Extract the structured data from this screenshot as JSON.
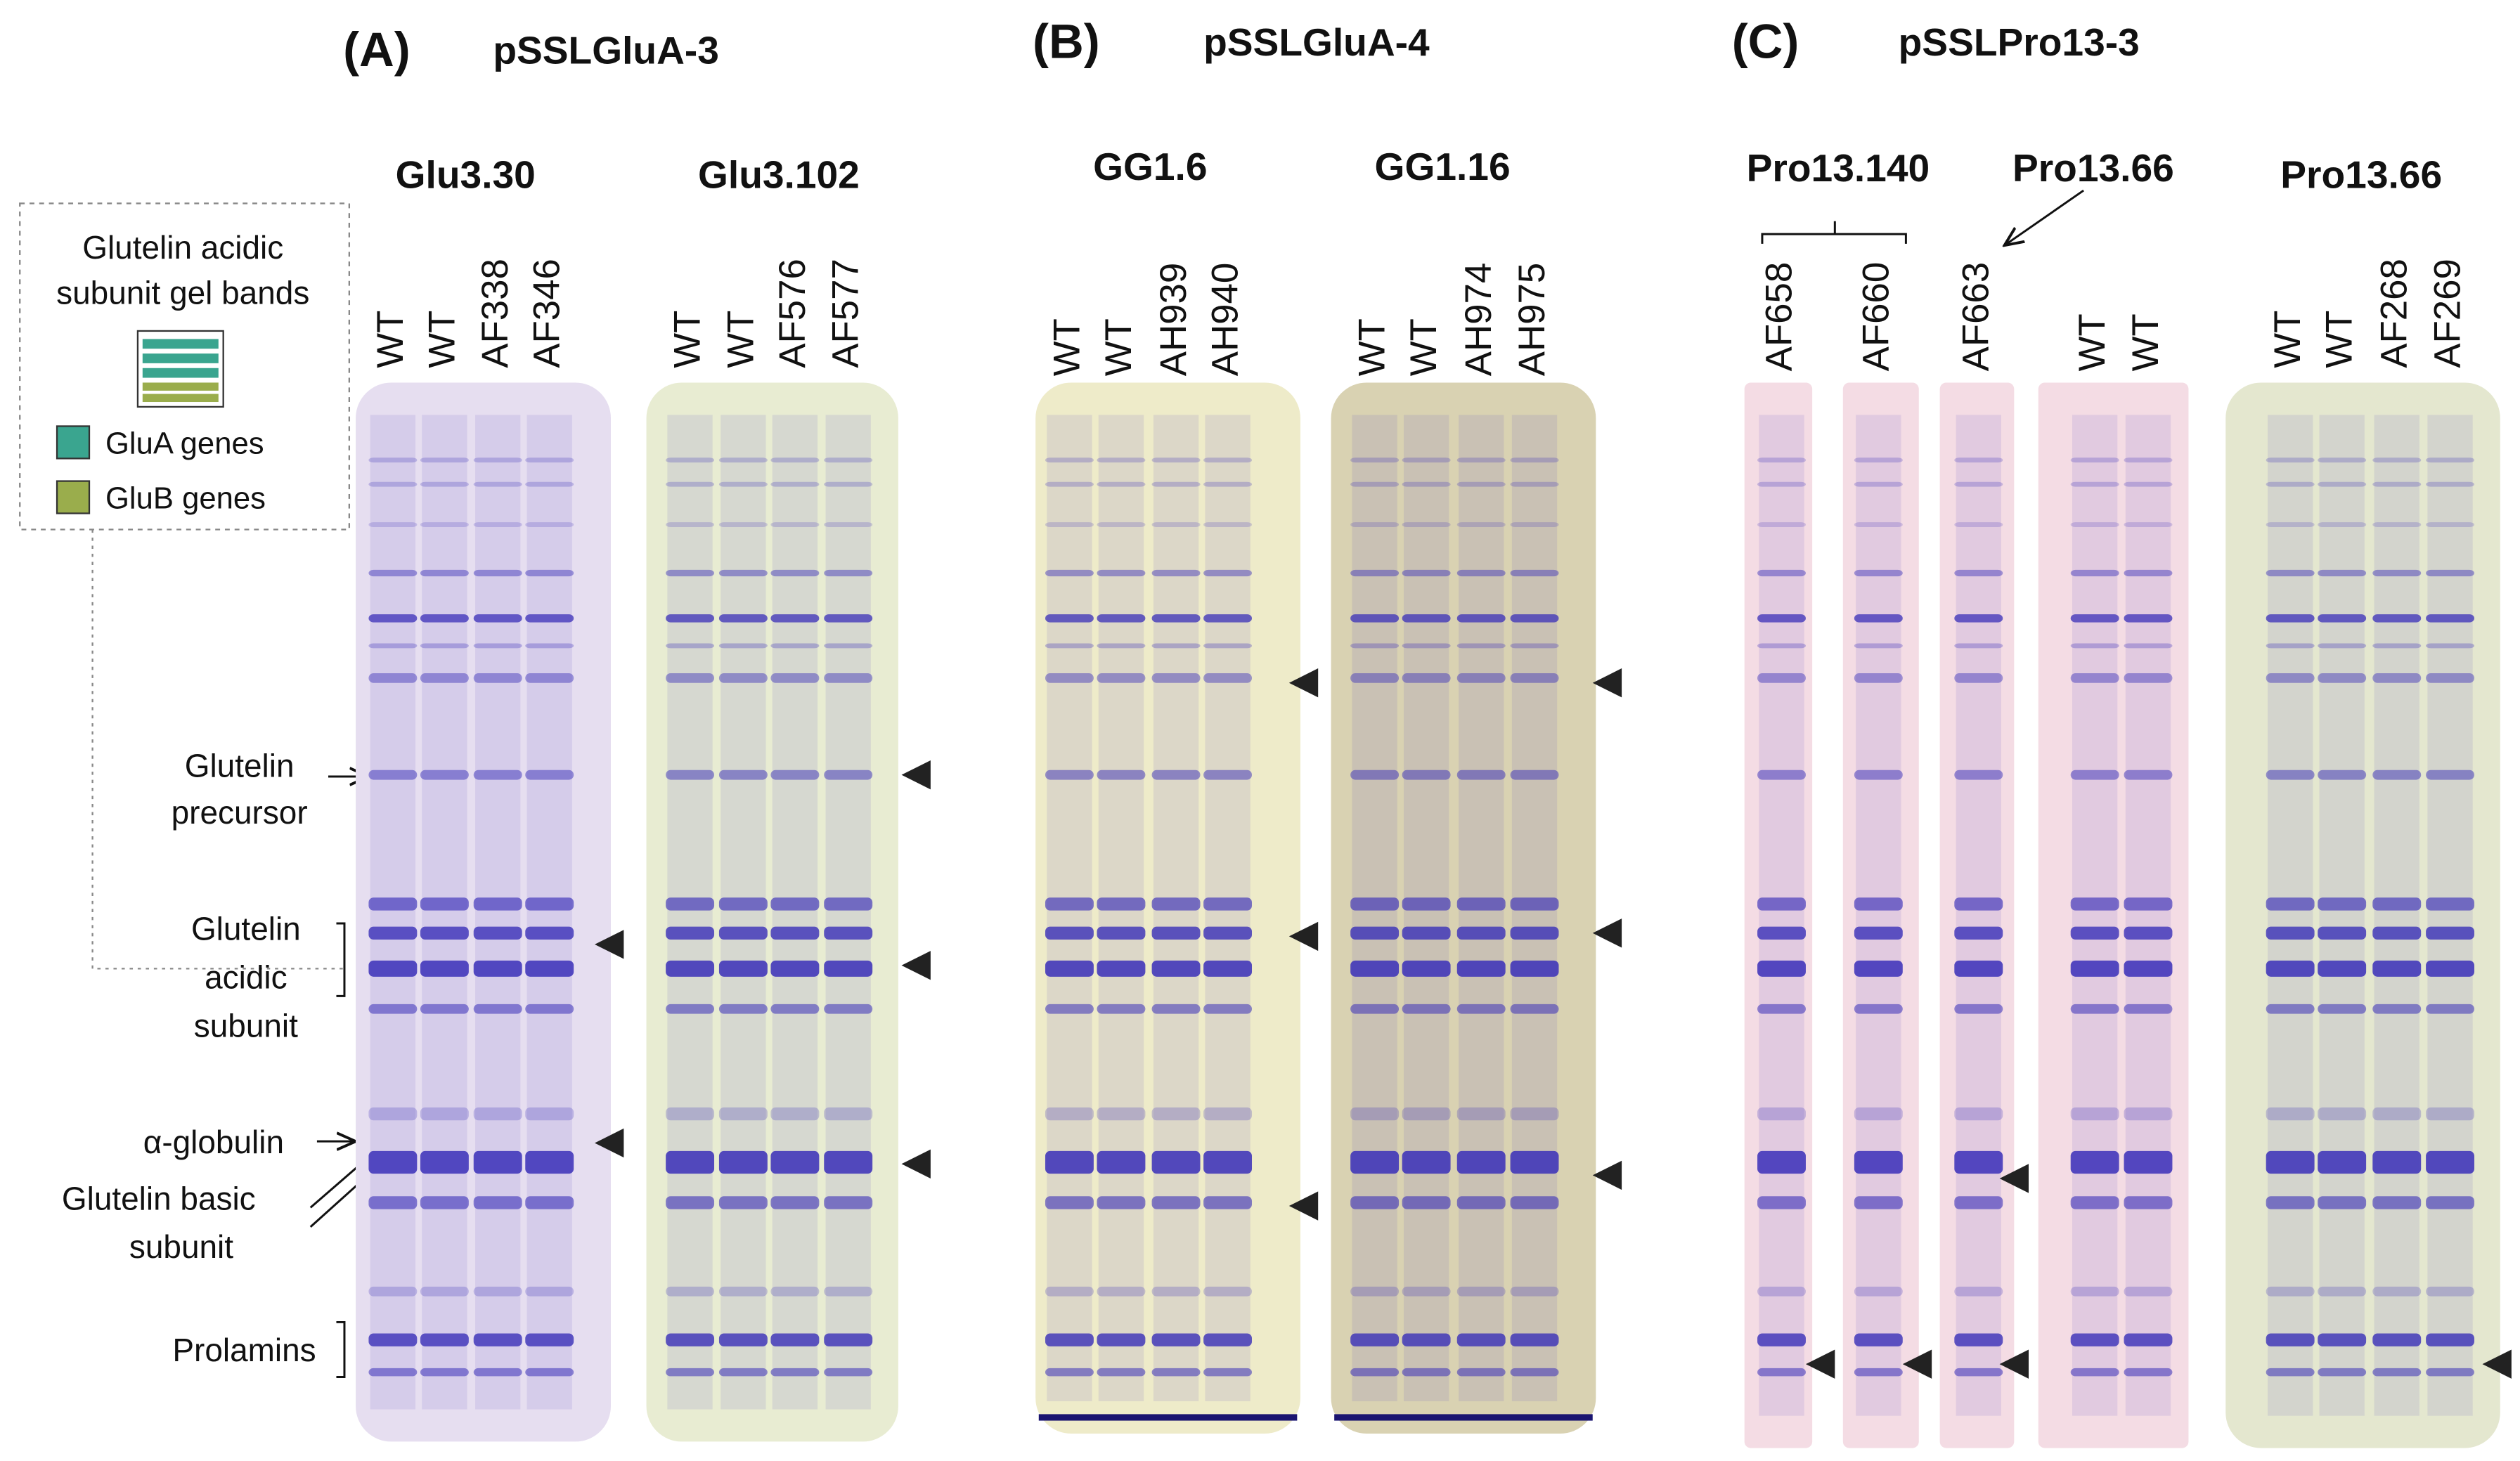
{
  "panels": [
    {
      "label": "(A)",
      "title": "pSSLGluA-3",
      "gels": [
        {
          "name": "Glu3.30",
          "lanes": [
            "WT",
            "WT",
            "AF338",
            "AF346"
          ]
        },
        {
          "name": "Glu3.102",
          "lanes": [
            "WT",
            "WT",
            "AF576",
            "AF577"
          ]
        }
      ]
    },
    {
      "label": "(B)",
      "title": "pSSLGluA-4",
      "gels": [
        {
          "name": "GG1.6",
          "lanes": [
            "WT",
            "WT",
            "AH939",
            "AH940"
          ]
        },
        {
          "name": "GG1.16",
          "lanes": [
            "WT",
            "WT",
            "AH974",
            "AH975"
          ]
        }
      ]
    },
    {
      "label": "(C)",
      "title": "pSSLPro13-3",
      "gels": [
        {
          "name": "Pro13.140",
          "lanes": [
            "AF658",
            "AF660"
          ]
        },
        {
          "name": "Pro13.66",
          "lanes": [
            "AF663"
          ]
        },
        {
          "lanes": [
            "WT",
            "WT"
          ]
        },
        {
          "name": "Pro13.66",
          "lanes": [
            "WT",
            "WT",
            "AF268",
            "AF269"
          ]
        }
      ]
    }
  ],
  "legend": {
    "title": [
      "Glutelin acidic",
      "subunit gel bands"
    ],
    "items": [
      "GluA genes",
      "GluB genes"
    ]
  },
  "band_labels": [
    [
      "Glutelin",
      "precursor"
    ],
    [
      "Glutelin",
      "acidic",
      "subunit"
    ],
    [
      "α-globulin"
    ],
    [
      "Glutelin basic",
      "subunit"
    ],
    [
      "Prolamins"
    ]
  ]
}
